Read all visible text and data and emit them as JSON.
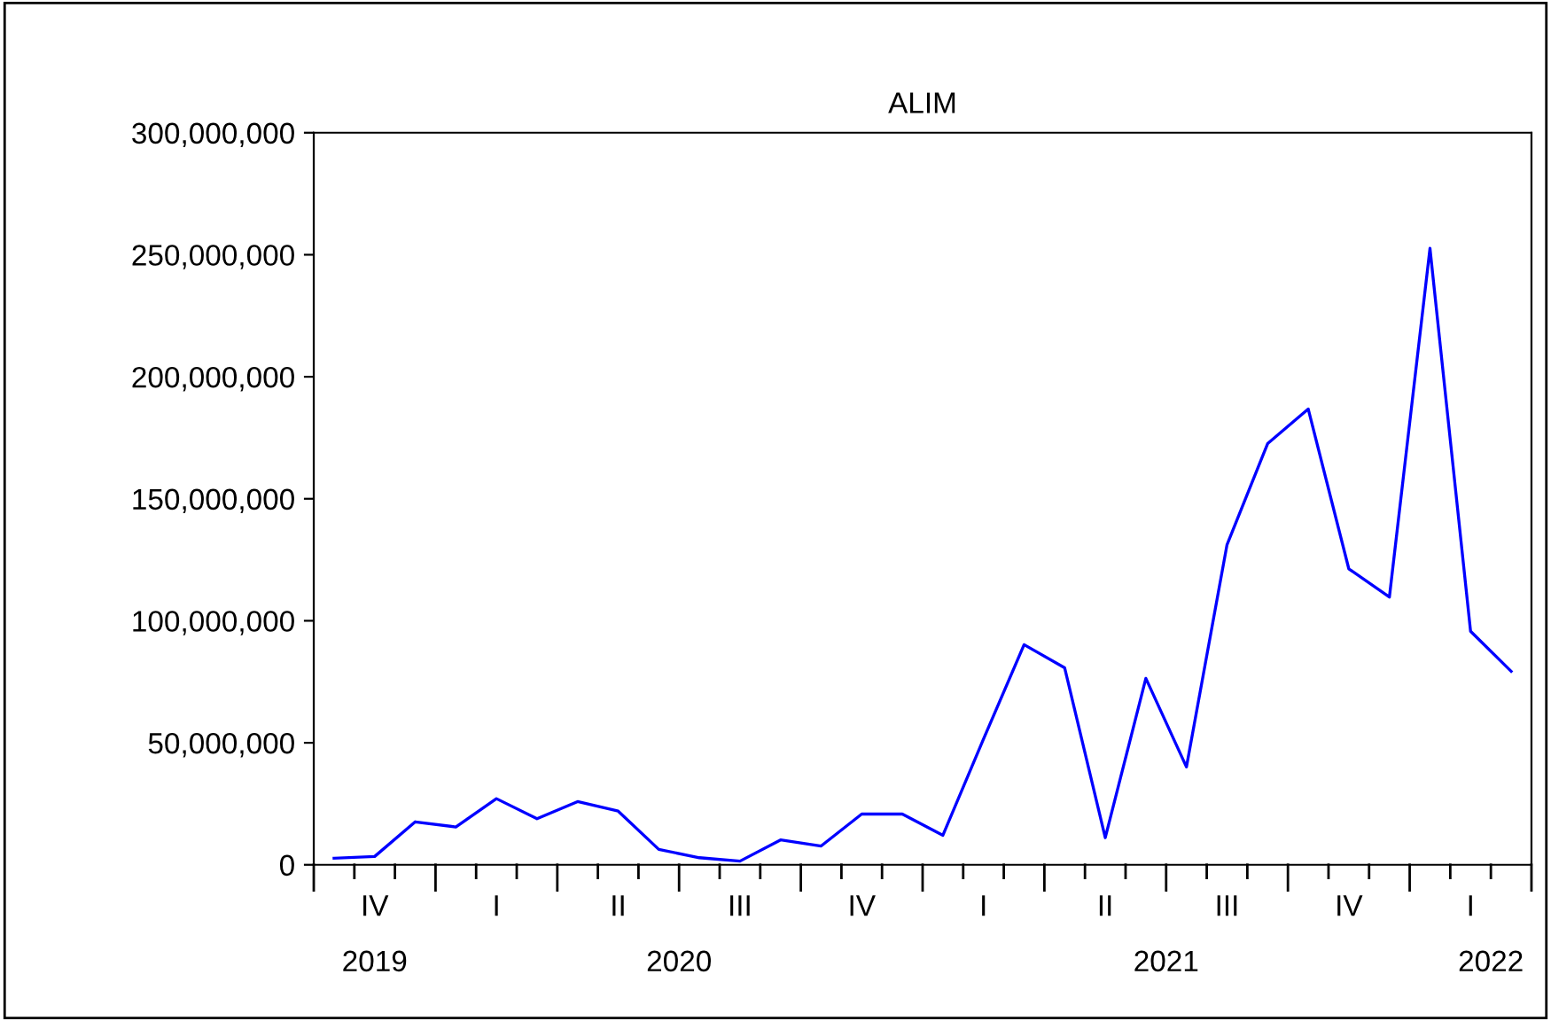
{
  "chart_data": {
    "type": "line",
    "title": "ALIM",
    "categories": [
      null,
      "IV",
      null,
      null,
      "I",
      null,
      null,
      "II",
      null,
      null,
      "III",
      null,
      null,
      "IV",
      null,
      null,
      "I",
      null,
      null,
      "II",
      null,
      null,
      "III",
      null,
      null,
      "IV",
      null,
      null,
      "I",
      null
    ],
    "series": [
      {
        "color": "#0000ff",
        "values": [
          2700000,
          3400000,
          17600000,
          15500000,
          27100000,
          18900000,
          25900000,
          22000000,
          6300000,
          2900000,
          1500000,
          10200000,
          7700000,
          20800000,
          20800000,
          12100000,
          51500000,
          90200000,
          80700000,
          11100000,
          76400000,
          40100000,
          131200000,
          172600000,
          186800000,
          121300000,
          109700000,
          252600000,
          95700000,
          79300000
        ]
      }
    ],
    "ylim": [
      0,
      300000000
    ],
    "yticks": [
      0,
      {
        "value": 50000000,
        "label": "50,000,000"
      },
      {
        "value": 100000000,
        "label": "100,000,000"
      },
      {
        "value": 150000000,
        "label": "150,000,000"
      },
      {
        "value": 200000000,
        "label": "200,000,000"
      },
      {
        "value": 250000000,
        "label": "250,000,000"
      },
      {
        "value": 300000000,
        "label": "300,000,000"
      }
    ],
    "annotations": [
      "2019",
      "2020",
      "2021",
      "2022"
    ],
    "grid": false,
    "legend": false,
    "marker": "none",
    "line_style": "solid"
  }
}
